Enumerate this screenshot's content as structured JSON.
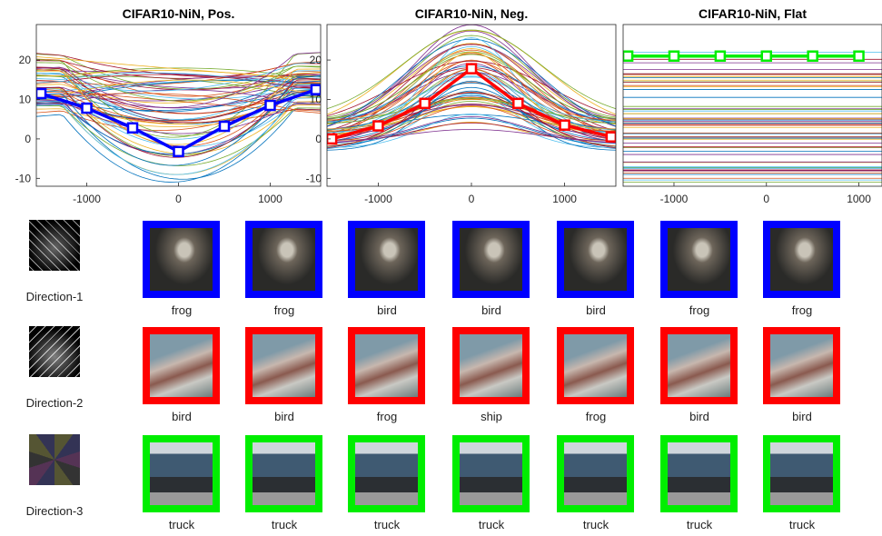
{
  "chart_data": [
    {
      "type": "line",
      "title": "CIFAR10-NiN, Pos.",
      "xlim": [
        -1550,
        1550
      ],
      "ylim": [
        -12,
        29
      ],
      "xticks": [
        -1000,
        0,
        1000
      ],
      "yticks": [
        -10,
        0,
        10,
        20
      ],
      "highlight": {
        "color": "#0000ff",
        "x": [
          -1500,
          -1000,
          -500,
          0,
          500,
          1000,
          1500
        ],
        "y": [
          11.5,
          7.8,
          2.8,
          -3.2,
          3.2,
          8.5,
          12.5
        ]
      }
    },
    {
      "type": "line",
      "title": "CIFAR10-NiN, Neg.",
      "xlim": [
        -1550,
        1550
      ],
      "ylim": [
        -12,
        29
      ],
      "xticks": [
        -1000,
        0,
        1000
      ],
      "yticks": [
        -10,
        0,
        10,
        20
      ],
      "highlight": {
        "color": "#ff0000",
        "x": [
          -1500,
          -1000,
          -500,
          0,
          500,
          1000,
          1500
        ],
        "y": [
          0,
          3.3,
          9,
          17.8,
          9,
          3.5,
          0.5
        ]
      }
    },
    {
      "type": "line",
      "title": "CIFAR10-NiN, Flat",
      "xlim": [
        -1550,
        1250
      ],
      "ylim": [
        -12,
        29
      ],
      "xticks": [
        -1000,
        0,
        1000
      ],
      "yticks": [],
      "highlight": {
        "color": "#00ee00",
        "x": [
          -1500,
          -1000,
          -500,
          0,
          500,
          1000
        ],
        "y": [
          21,
          21,
          21,
          21,
          21,
          21
        ]
      }
    }
  ],
  "directions": [
    {
      "label": "Direction-1",
      "frame_color": "#0000ff",
      "predictions": [
        "frog",
        "frog",
        "bird",
        "bird",
        "bird",
        "frog",
        "frog"
      ]
    },
    {
      "label": "Direction-2",
      "frame_color": "#ff0000",
      "predictions": [
        "bird",
        "bird",
        "frog",
        "ship",
        "frog",
        "bird",
        "bird"
      ]
    },
    {
      "label": "Direction-3",
      "frame_color": "#00ee00",
      "predictions": [
        "truck",
        "truck",
        "truck",
        "truck",
        "truck",
        "truck",
        "truck"
      ]
    }
  ]
}
